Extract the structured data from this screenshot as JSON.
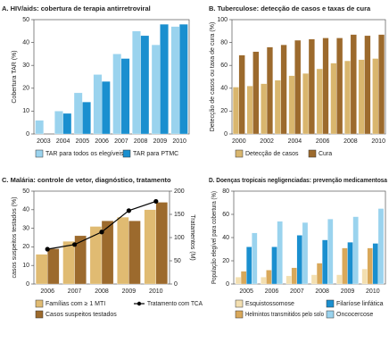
{
  "chart_data": [
    {
      "type": "bar",
      "title": "A. HIV/aids: cobertura de terapia antirretroviral",
      "y_label": "Cobertura TAR (%)",
      "categories": [
        2003,
        2004,
        2005,
        2006,
        2007,
        2008,
        2009,
        2010
      ],
      "series": [
        {
          "name": "TAR para todos os elegíveis",
          "color": "#9ad3ee",
          "values": [
            6,
            10,
            18,
            26,
            35,
            45,
            39,
            47
          ]
        },
        {
          "name": "TAR para PTMC",
          "color": "#1a8fcf",
          "values": [
            null,
            9,
            14,
            23,
            33,
            43,
            48,
            48
          ]
        }
      ],
      "ylim": [
        0,
        50
      ],
      "yticks": [
        0,
        10,
        20,
        30,
        40,
        50
      ]
    },
    {
      "type": "bar",
      "title": "B. Tuberculose: detecção de casos e taxas de cura",
      "y_label": "Detecção de casos ou taxa de cura (%)",
      "categories": [
        2000,
        null,
        2002,
        null,
        2004,
        null,
        2006,
        null,
        2008,
        null,
        2010
      ],
      "series": [
        {
          "name": "Detecção de casos",
          "color": "#d9b66e",
          "values": [
            41,
            42,
            44,
            47,
            51,
            53,
            57,
            62,
            64,
            65,
            66
          ]
        },
        {
          "name": "Cura",
          "color": "#9c6a2d",
          "values": [
            69,
            72,
            76,
            78,
            82,
            83,
            84,
            84,
            87,
            86,
            87
          ]
        }
      ],
      "ylim": [
        0,
        100
      ],
      "yticks": [
        0,
        20,
        40,
        60,
        80,
        100
      ]
    },
    {
      "type": "bar",
      "title": "C. Malária: controle de vetor, diagnóstico, tratamento",
      "y_label": "casos suspeitos testados (%)",
      "y2_label": "Tratamentos (M)",
      "categories": [
        2006,
        2007,
        2008,
        2009,
        2010
      ],
      "series": [
        {
          "name": "Famílias com ≥ 1 MTI",
          "color": "#e0bb72",
          "values": [
            16,
            23,
            31,
            36,
            40
          ]
        },
        {
          "name": "Casos suspeitos testados",
          "color": "#9c6a2d",
          "values": [
            19,
            26,
            34,
            34,
            44
          ]
        },
        {
          "name": "Tratamento com TCA",
          "color": "#000000",
          "type": "line",
          "axis": "y2",
          "values": [
            75,
            85,
            112,
            158,
            178
          ]
        }
      ],
      "ylim": [
        0,
        50
      ],
      "yticks": [
        0,
        10,
        20,
        30,
        40,
        50
      ],
      "y2lim": [
        0,
        200
      ],
      "y2ticks": [
        0,
        50,
        100,
        150,
        200
      ]
    },
    {
      "type": "bar",
      "title": "D. Doenças tropicais negligenciadas: prevenção medicamentosa",
      "y_label": "População elegível para cobertura (%)",
      "categories": [
        2005,
        2006,
        2007,
        2008,
        2009,
        2010
      ],
      "series": [
        {
          "name": "Esquistossomose",
          "color": "#f3dfb0",
          "values": [
            6,
            6,
            7,
            8,
            8,
            13
          ]
        },
        {
          "name": "Helmintos transmitidos pelo solo",
          "color": "#d9a85a",
          "values": [
            11,
            12,
            14,
            18,
            31,
            31
          ]
        },
        {
          "name": "Filaríose linfática",
          "color": "#1a8fcf",
          "values": [
            32,
            32,
            42,
            38,
            36,
            35
          ]
        },
        {
          "name": "Oncocercose",
          "color": "#9ad3ee",
          "values": [
            44,
            54,
            53,
            56,
            58,
            65
          ]
        }
      ],
      "ylim": [
        0,
        80
      ],
      "yticks": [
        0,
        20,
        40,
        60,
        80
      ]
    }
  ]
}
